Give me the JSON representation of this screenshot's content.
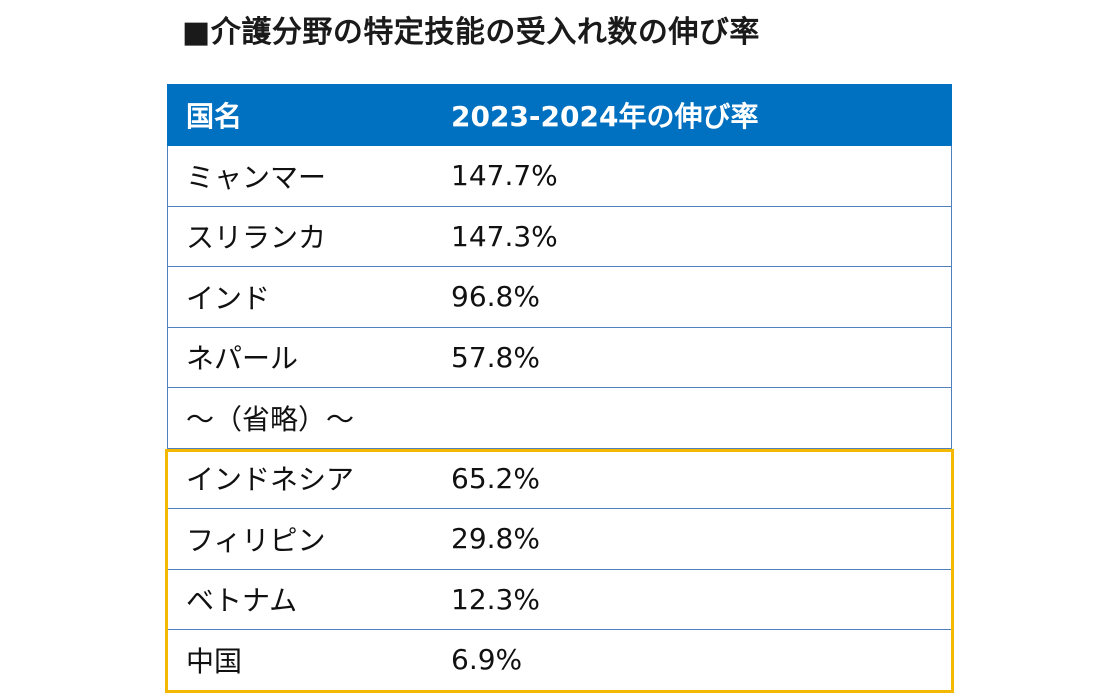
{
  "title": "■介護分野の特定技能の受入れ数の伸び率",
  "table": {
    "headers": {
      "country": "国名",
      "rate": "2023-2024年の伸び率"
    },
    "rows": [
      {
        "country": "ミャンマー",
        "rate": "147.7%"
      },
      {
        "country": "スリランカ",
        "rate": "147.3%"
      },
      {
        "country": "インド",
        "rate": "96.8%"
      },
      {
        "country": "ネパール",
        "rate": "57.8%"
      },
      {
        "country": "～（省略）～",
        "rate": ""
      },
      {
        "country": "インドネシア",
        "rate": "65.2%"
      },
      {
        "country": "フィリピン",
        "rate": "29.8%"
      },
      {
        "country": "ベトナム",
        "rate": "12.3%"
      },
      {
        "country": "中国",
        "rate": "6.9%"
      }
    ]
  },
  "colors": {
    "header_bg": "#0070c0",
    "highlight": "#f5b800",
    "row_border": "#4f81bd"
  }
}
